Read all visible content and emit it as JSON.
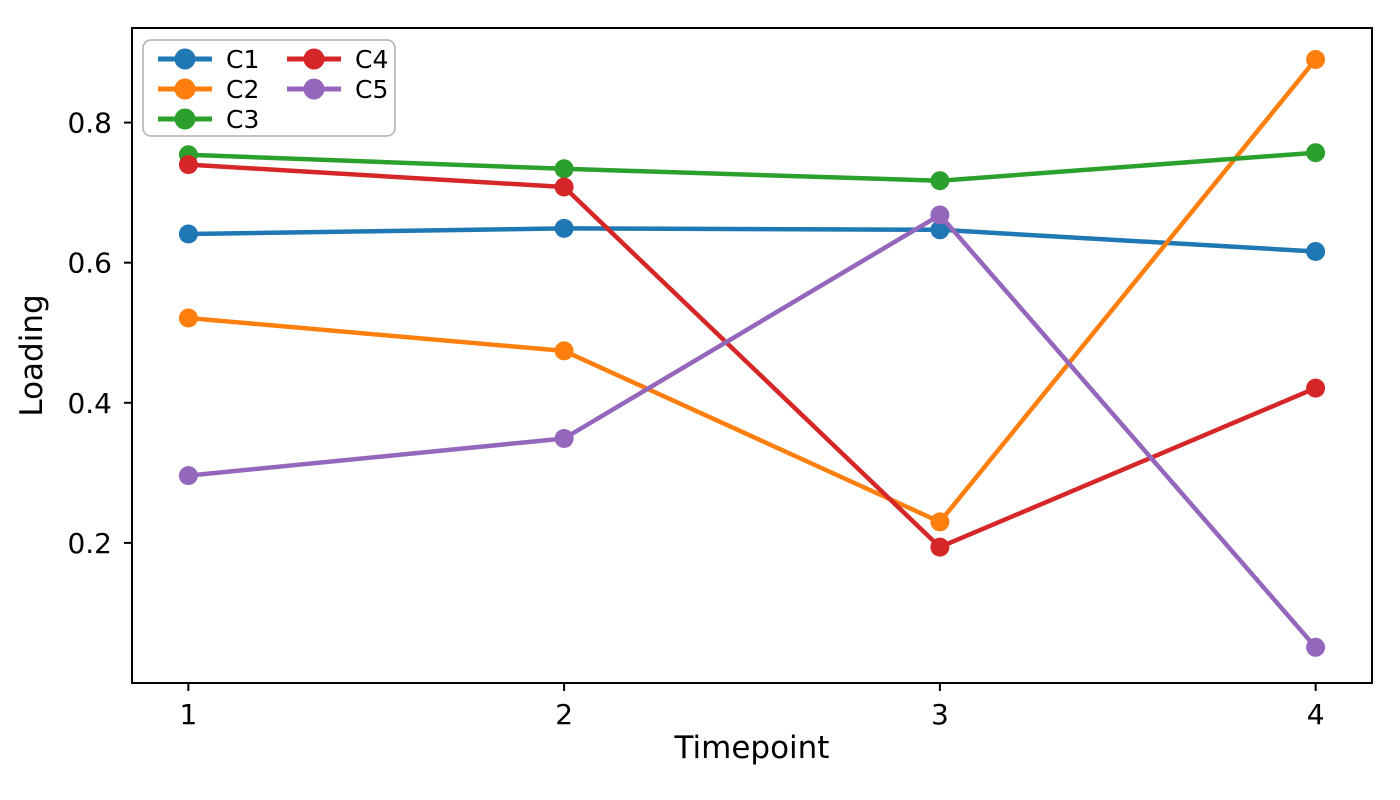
{
  "chart_data": {
    "type": "line",
    "title": "",
    "xlabel": "Timepoint",
    "ylabel": "Loading",
    "x": [
      1,
      2,
      3,
      4
    ],
    "xticks": [
      1,
      2,
      3,
      4
    ],
    "yticks": [
      0.2,
      0.4,
      0.6,
      0.8
    ],
    "xlim": [
      0.85,
      4.15
    ],
    "ylim": [
      0.0,
      0.935
    ],
    "grid": false,
    "legend_position": "upper-left",
    "legend_columns": 2,
    "legend_fill_order": "column-major",
    "series": [
      {
        "name": "C1",
        "color": "#1f77b4",
        "values": [
          0.641,
          0.649,
          0.647,
          0.616
        ]
      },
      {
        "name": "C2",
        "color": "#ff7f0e",
        "values": [
          0.521,
          0.474,
          0.23,
          0.89
        ]
      },
      {
        "name": "C3",
        "color": "#2ca02c",
        "values": [
          0.754,
          0.734,
          0.717,
          0.757
        ]
      },
      {
        "name": "C4",
        "color": "#d62728",
        "values": [
          0.74,
          0.708,
          0.194,
          0.421
        ]
      },
      {
        "name": "C5",
        "color": "#9467bd",
        "values": [
          0.296,
          0.349,
          0.668,
          0.051
        ]
      }
    ],
    "style": {
      "line_width": 4.5,
      "marker_radius": 9.5,
      "spine_color": "#000000",
      "legend_border_color": "#b0b0b0",
      "background": "#ffffff"
    }
  }
}
